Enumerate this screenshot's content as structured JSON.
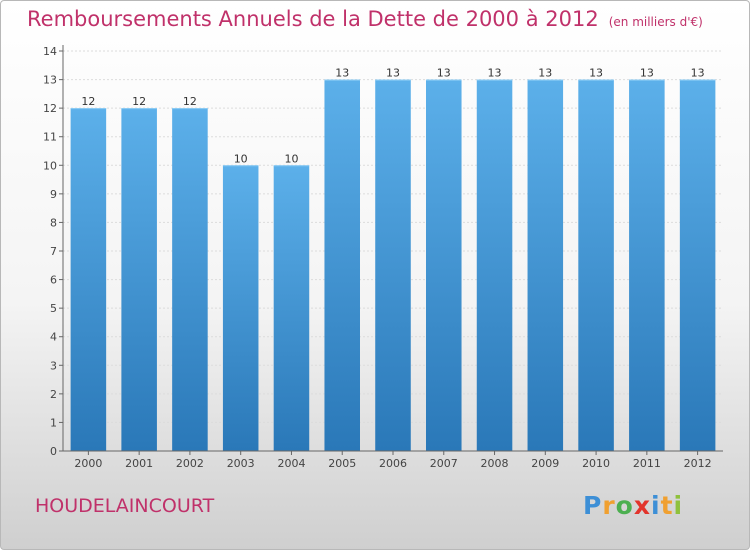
{
  "title": "Remboursements Annuels de la Dette de 2000 à 2012",
  "unit": "(en milliers d'€)",
  "commune": "HOUDELAINCOURT",
  "logo": {
    "letters": [
      "P",
      "r",
      "o",
      "x",
      "i",
      "t",
      "i"
    ],
    "colors": [
      "#3d8fd6",
      "#f0a030",
      "#4caf50",
      "#e2342c",
      "#3d8fd6",
      "#f0a030",
      "#8fc13c"
    ]
  },
  "colors": {
    "accent": "#c0316a",
    "bar_light": "#5cb0ea",
    "bar_dark": "#2a78b8"
  },
  "chart_data": {
    "type": "bar",
    "title": "Remboursements Annuels de la Dette de 2000 à 2012",
    "xlabel": "",
    "ylabel": "(en milliers d'€)",
    "categories": [
      "2000",
      "2001",
      "2002",
      "2003",
      "2004",
      "2005",
      "2006",
      "2007",
      "2008",
      "2009",
      "2010",
      "2011",
      "2012"
    ],
    "values": [
      12,
      12,
      12,
      10,
      10,
      13,
      13,
      13,
      13,
      13,
      13,
      13,
      13
    ],
    "labels": [
      "12",
      "12",
      "12",
      "10",
      "10",
      "13",
      "13",
      "13",
      "13",
      "13",
      "13",
      "13",
      "13"
    ],
    "yticks": [
      0,
      1,
      2,
      3,
      4,
      5,
      6,
      7,
      8,
      9,
      10,
      11,
      12,
      13,
      14
    ],
    "ylim": [
      0,
      14
    ],
    "grid": true
  }
}
